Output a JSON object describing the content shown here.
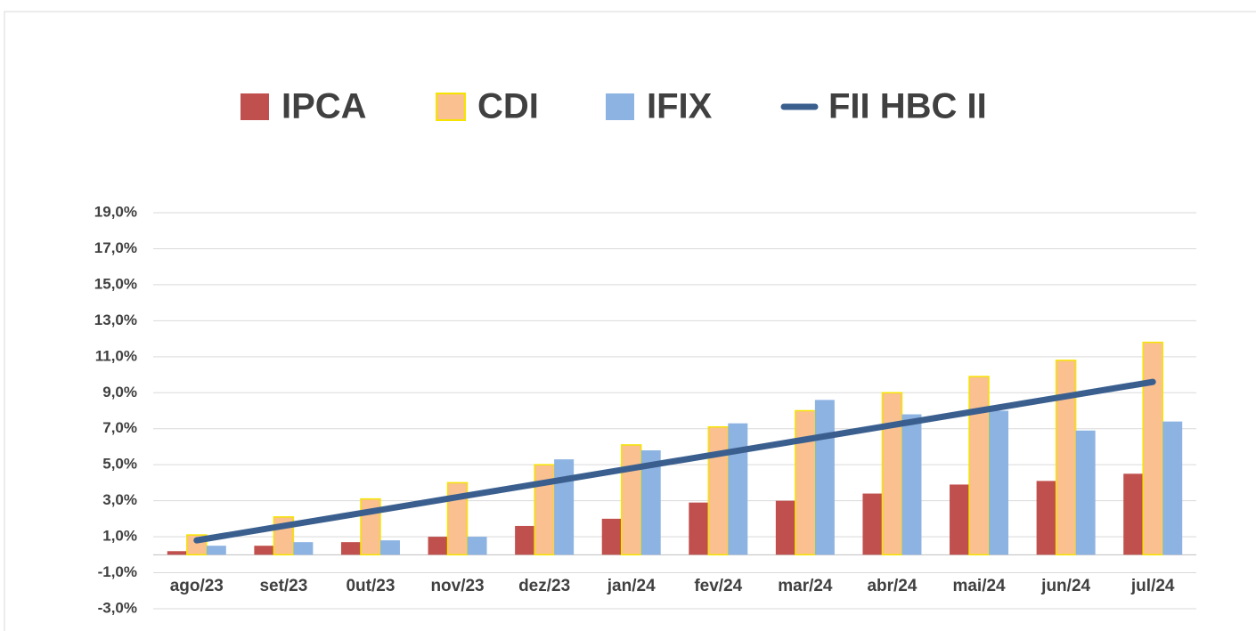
{
  "chart_data": {
    "type": "bar",
    "categories": [
      "ago/23",
      "set/23",
      "0ut/23",
      "nov/23",
      "dez/23",
      "jan/24",
      "fev/24",
      "mar/24",
      "abr/24",
      "mai/24",
      "jun/24",
      "jul/24"
    ],
    "series": [
      {
        "name": "IPCA",
        "type": "bar",
        "color": "#c0504d",
        "values": [
          0.2,
          0.5,
          0.7,
          1.0,
          1.6,
          2.0,
          2.9,
          3.0,
          3.4,
          3.9,
          4.1,
          4.5
        ]
      },
      {
        "name": "CDI",
        "type": "bar",
        "color": "#fac090",
        "edge_color": "#f5e400",
        "values": [
          1.1,
          2.1,
          3.1,
          4.0,
          5.0,
          6.1,
          7.1,
          8.0,
          9.0,
          9.9,
          10.8,
          11.8
        ]
      },
      {
        "name": "IFIX",
        "type": "bar",
        "color": "#8db3e2",
        "values": [
          0.5,
          0.7,
          0.8,
          1.0,
          5.3,
          5.8,
          7.3,
          8.6,
          7.8,
          8.0,
          6.9,
          7.4
        ]
      },
      {
        "name": "FII HBC II",
        "type": "line",
        "color": "#3a5f8f",
        "values": [
          0.8,
          1.6,
          2.4,
          3.2,
          4.0,
          4.8,
          5.6,
          6.4,
          7.2,
          8.0,
          8.8,
          9.6
        ]
      }
    ],
    "ylim": [
      -3,
      19
    ],
    "yticks": [
      {
        "value": -3,
        "label": "-3,0%"
      },
      {
        "value": -1,
        "label": "-1,0%"
      },
      {
        "value": 1,
        "label": "1,0%"
      },
      {
        "value": 3,
        "label": "3,0%"
      },
      {
        "value": 5,
        "label": "5,0%"
      },
      {
        "value": 7,
        "label": "7,0%"
      },
      {
        "value": 9,
        "label": "9,0%"
      },
      {
        "value": 11,
        "label": "11,0%"
      },
      {
        "value": 13,
        "label": "13,0%"
      },
      {
        "value": 15,
        "label": "15,0%"
      },
      {
        "value": 17,
        "label": "17,0%"
      },
      {
        "value": 19,
        "label": "19,0%"
      }
    ],
    "grid": true,
    "legend": "top"
  }
}
